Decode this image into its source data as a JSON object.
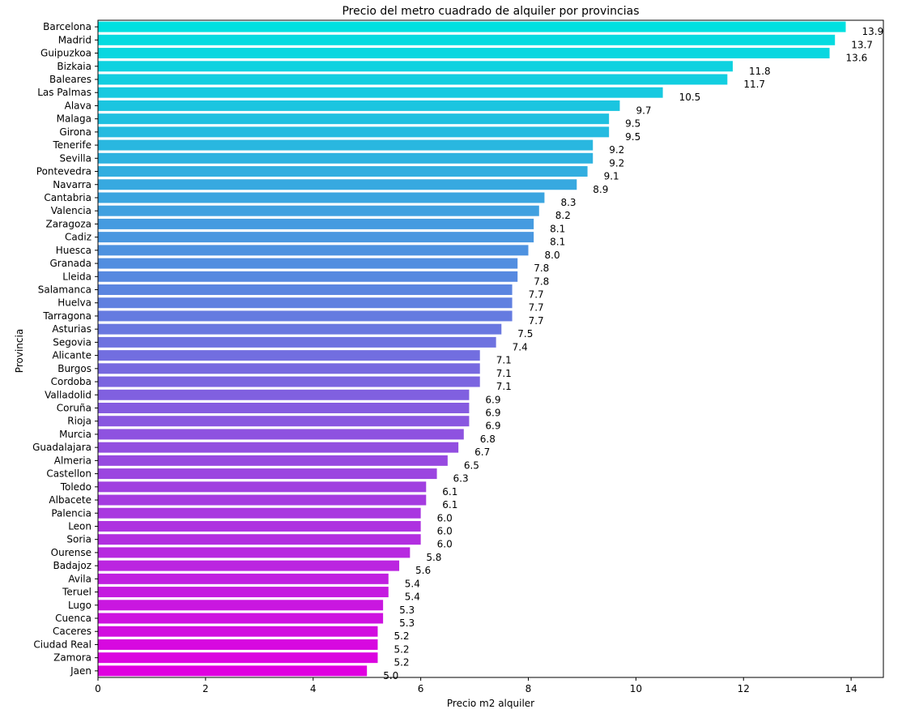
{
  "chart_data": {
    "type": "bar",
    "orientation": "horizontal",
    "title": "Precio del metro cuadrado de alquiler por provincias",
    "xlabel": "Precio m2 alquiler",
    "ylabel": "Provincia",
    "xlim": [
      0,
      14.6
    ],
    "xticks": [
      0,
      2,
      4,
      6,
      8,
      10,
      12,
      14
    ],
    "grid": false,
    "colormap": "cool",
    "color_start": "#00e0e0",
    "color_end": "#e000e0",
    "categories": [
      "Barcelona",
      "Madrid",
      "Guipuzkoa",
      "Bizkaia",
      "Baleares",
      "Las Palmas",
      "Alava",
      "Malaga",
      "Girona",
      "Tenerife",
      "Sevilla",
      "Pontevedra",
      "Navarra",
      "Cantabria",
      "Valencia",
      "Zaragoza",
      "Cadiz",
      "Huesca",
      "Granada",
      "Lleida",
      "Salamanca",
      "Huelva",
      "Tarragona",
      "Asturias",
      "Segovia",
      "Alicante",
      "Burgos",
      "Cordoba",
      "Valladolid",
      "Coruña",
      "Rioja",
      "Murcia",
      "Guadalajara",
      "Almeria",
      "Castellon",
      "Toledo",
      "Albacete",
      "Palencia",
      "Leon",
      "Soria",
      "Ourense",
      "Badajoz",
      "Avila",
      "Teruel",
      "Lugo",
      "Cuenca",
      "Caceres",
      "Ciudad Real",
      "Zamora",
      "Jaen"
    ],
    "values": [
      13.9,
      13.7,
      13.6,
      11.8,
      11.7,
      10.5,
      9.7,
      9.5,
      9.5,
      9.2,
      9.2,
      9.1,
      8.9,
      8.3,
      8.2,
      8.1,
      8.1,
      8.0,
      7.8,
      7.8,
      7.7,
      7.7,
      7.7,
      7.5,
      7.4,
      7.1,
      7.1,
      7.1,
      6.9,
      6.9,
      6.9,
      6.8,
      6.7,
      6.5,
      6.3,
      6.1,
      6.1,
      6.0,
      6.0,
      6.0,
      5.8,
      5.6,
      5.4,
      5.4,
      5.3,
      5.3,
      5.2,
      5.2,
      5.2,
      5.0
    ]
  }
}
